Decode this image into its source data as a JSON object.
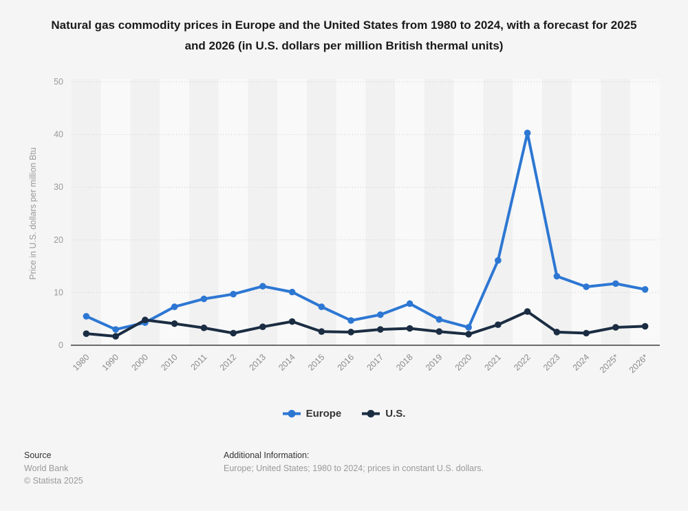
{
  "title": "Natural gas commodity prices in Europe and the United States from 1980 to 2024, with a forecast for 2025 and 2026 (in U.S. dollars per million British thermal units)",
  "chart_data": {
    "type": "line",
    "categories": [
      "1980",
      "1990",
      "2000",
      "2010",
      "2011",
      "2012",
      "2013",
      "2014",
      "2015",
      "2016",
      "2017",
      "2018",
      "2019",
      "2020",
      "2021",
      "2022",
      "2023",
      "2024",
      "2025*",
      "2026*"
    ],
    "series": [
      {
        "name": "Europe",
        "color": "#2d77d3",
        "values": [
          5.5,
          3.0,
          4.3,
          7.3,
          8.8,
          9.7,
          11.2,
          10.1,
          7.3,
          4.7,
          5.8,
          7.9,
          4.9,
          3.4,
          16.1,
          40.3,
          13.1,
          11.1,
          11.7,
          10.6
        ]
      },
      {
        "name": "U.S.",
        "color": "#1b2d42",
        "values": [
          2.2,
          1.7,
          4.8,
          4.1,
          3.3,
          2.3,
          3.5,
          4.5,
          2.6,
          2.5,
          3.0,
          3.2,
          2.6,
          2.1,
          3.9,
          6.4,
          2.5,
          2.3,
          3.4,
          3.6
        ]
      }
    ],
    "title": "Natural gas commodity prices in Europe and the United States from 1980 to 2024, with a forecast for 2025 and 2026 (in U.S. dollars per million British thermal units)",
    "xlabel": "",
    "ylabel": "Price in U.S. dollars per million Btu",
    "ylim": [
      0,
      50
    ],
    "yticks": [
      0,
      10,
      20,
      30,
      40,
      50
    ],
    "grid": "horizontal dotted",
    "plot_bands": "alternating vertical gray bands",
    "legend_position": "bottom-center"
  },
  "style": {
    "background": "#f5f5f5",
    "band_dark": "#f1f1f1",
    "band_light": "#f9f9f9",
    "gridline_color": "#c9c9c9",
    "baseline_color": "#3c3c3c",
    "tick_label_color": "#999999",
    "axis_title_color": "#999999"
  },
  "footer": {
    "source_label": "Source",
    "source_value": "World Bank",
    "copyright": "© Statista 2025",
    "additional_info_label": "Additional Information:",
    "additional_info_value": "Europe; United States; 1980 to 2024; prices in constant U.S. dollars."
  }
}
